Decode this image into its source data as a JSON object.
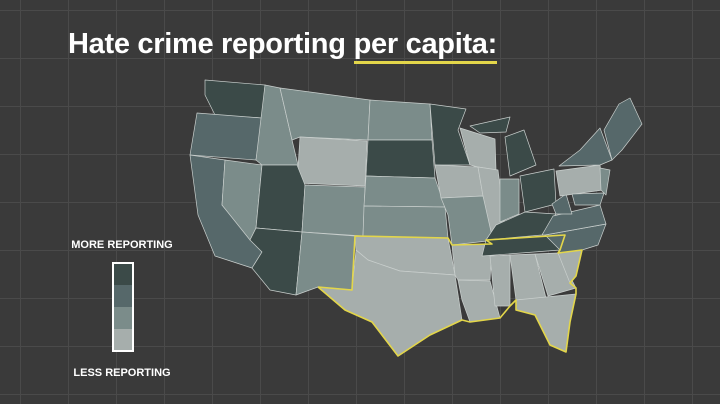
{
  "title": {
    "text": "Hate crime reporting",
    "highlight": "per capita:"
  },
  "legend": {
    "top_label": "MORE REPORTING",
    "bottom_label": "LESS REPORTING",
    "colors": [
      "#3b4a48",
      "#56686a",
      "#7b8c8a",
      "#a6aeac"
    ]
  }
}
